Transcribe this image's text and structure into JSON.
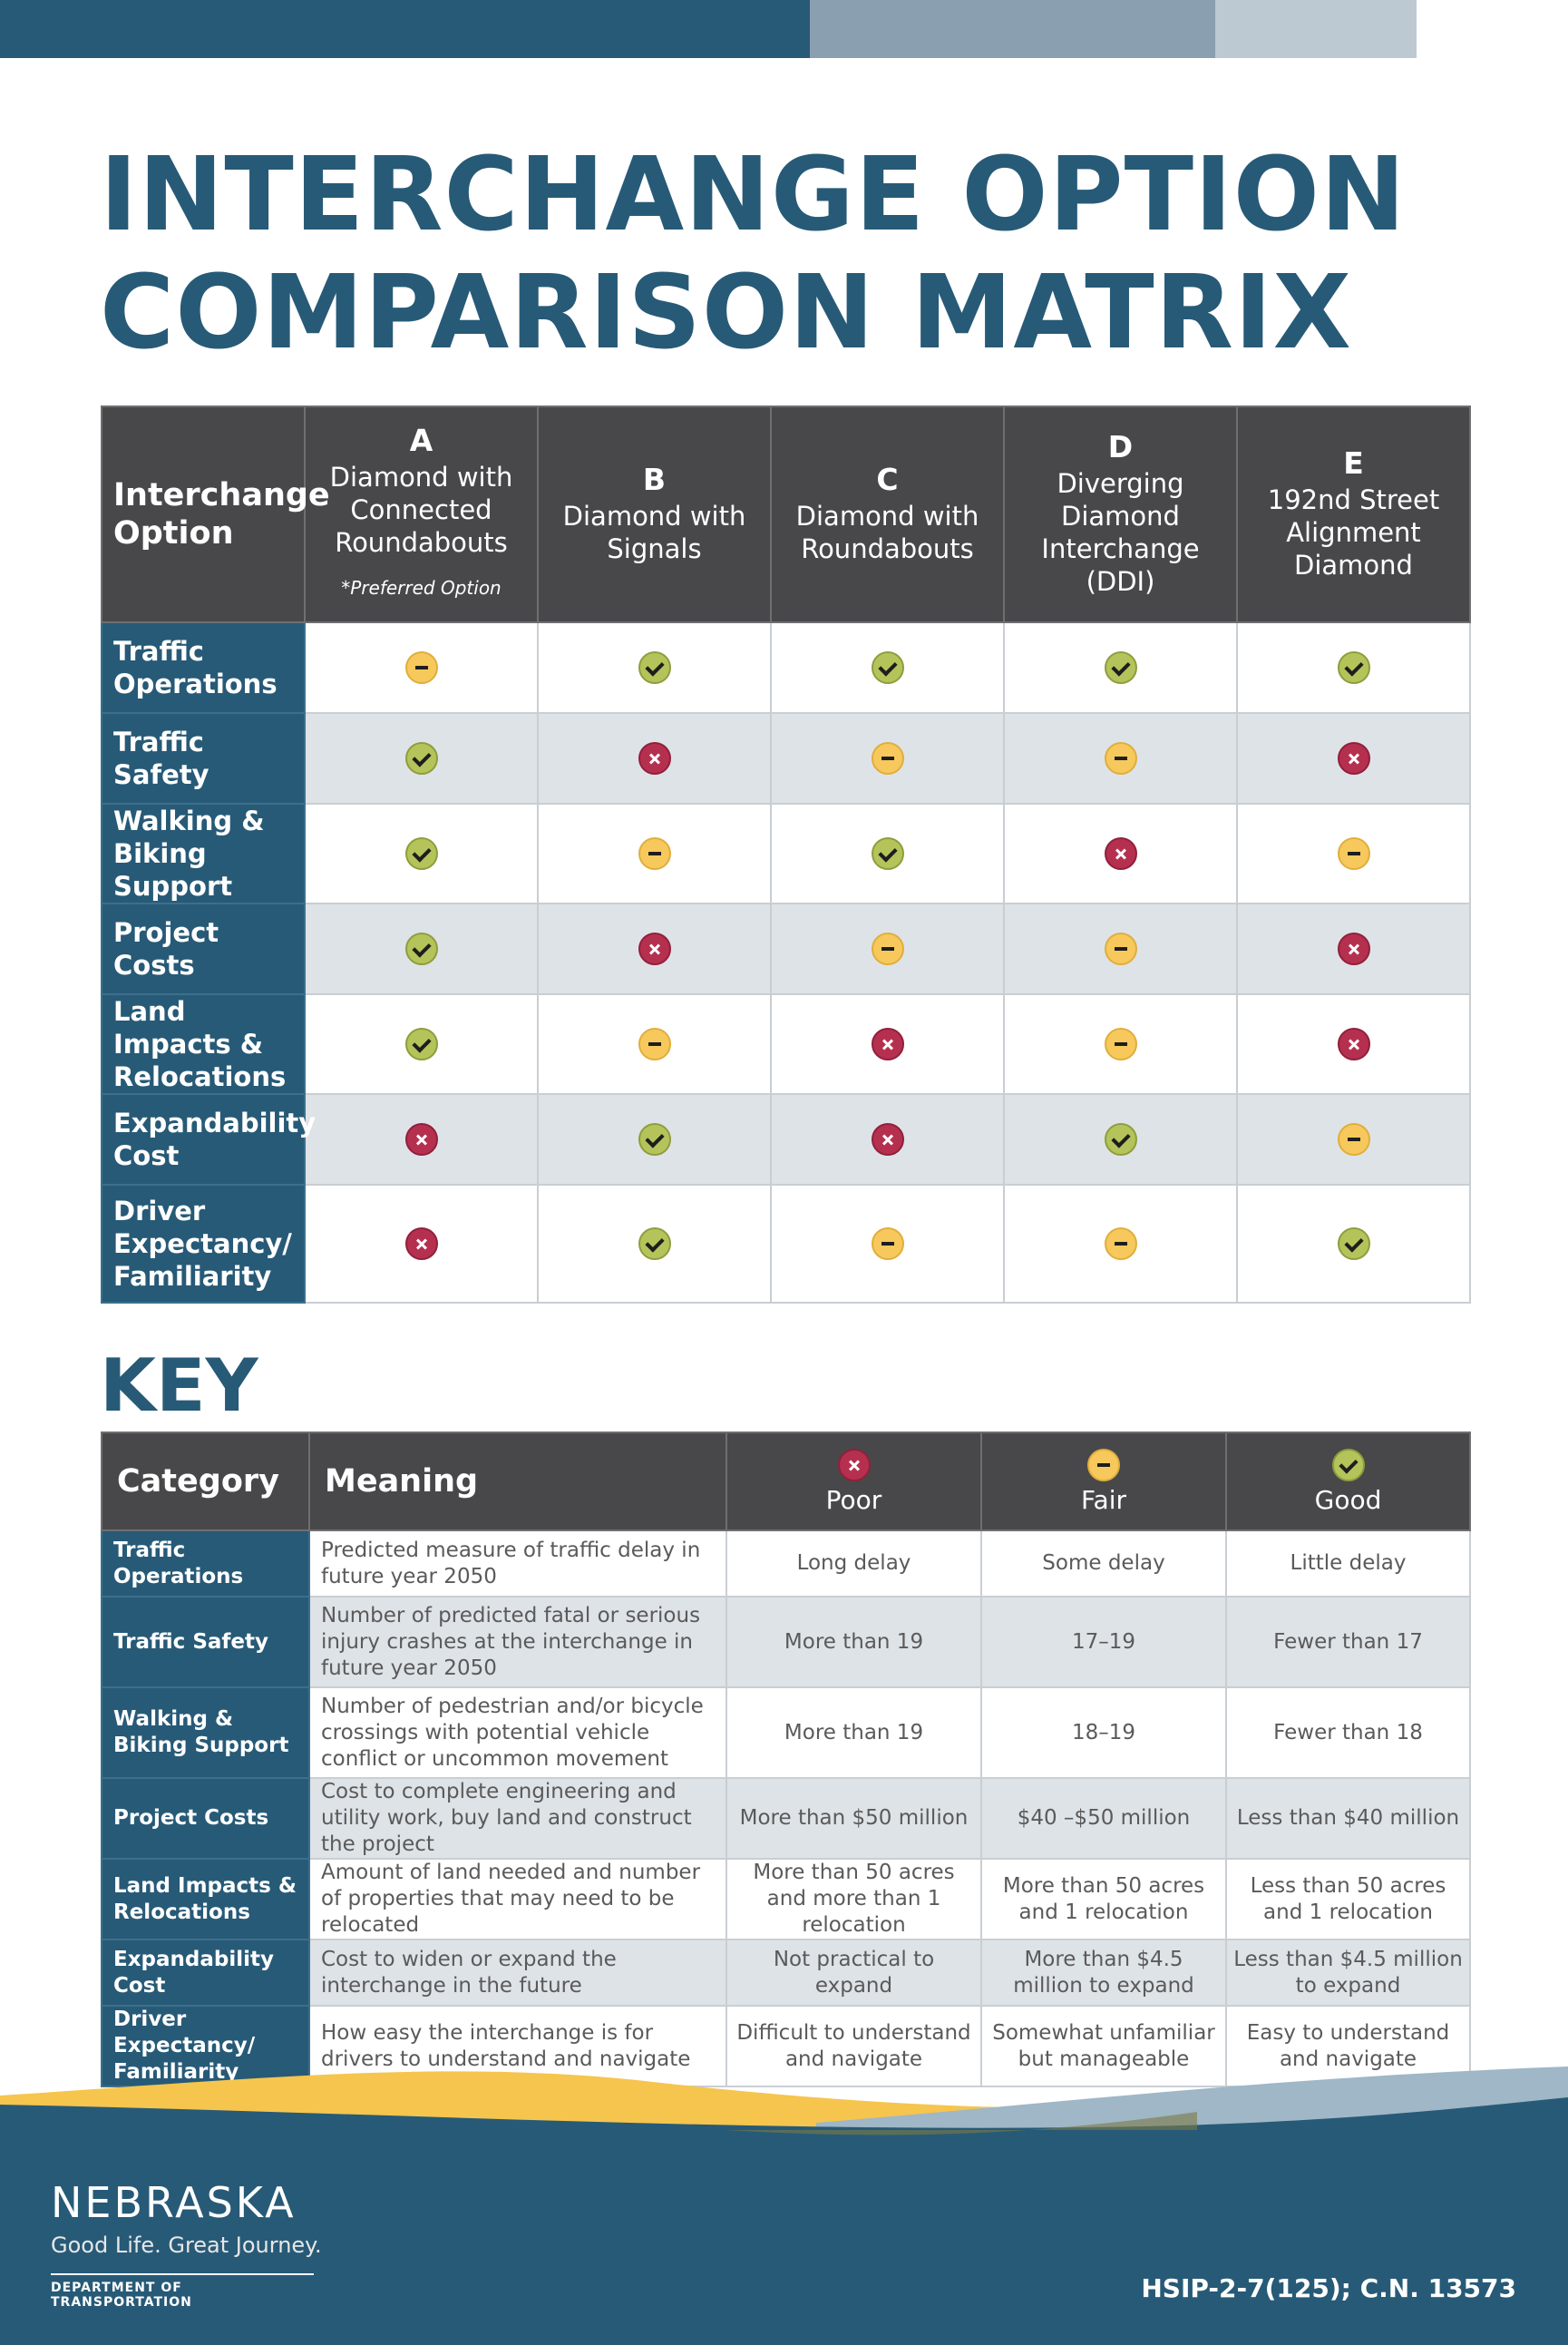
{
  "title": {
    "line1": "INTERCHANGE OPTION",
    "line2": "COMPARISON MATRIX"
  },
  "matrix": {
    "corner_label": "Interchange Option",
    "options": [
      {
        "letter": "A",
        "name": "Diamond with Connected Roundabouts",
        "note": "*Preferred Option"
      },
      {
        "letter": "B",
        "name": "Diamond with Signals",
        "note": ""
      },
      {
        "letter": "C",
        "name": "Diamond with Roundabouts",
        "note": ""
      },
      {
        "letter": "D",
        "name": "Diverging Diamond Interchange (DDI)",
        "note": ""
      },
      {
        "letter": "E",
        "name": "192nd Street Alignment Diamond",
        "note": ""
      }
    ],
    "rows": [
      {
        "label": "Traffic Operations",
        "ratings": [
          "fair",
          "good",
          "good",
          "good",
          "good"
        ]
      },
      {
        "label": "Traffic Safety",
        "ratings": [
          "good",
          "poor",
          "fair",
          "fair",
          "poor"
        ]
      },
      {
        "label": "Walking & Biking Support",
        "ratings": [
          "good",
          "fair",
          "good",
          "poor",
          "fair"
        ]
      },
      {
        "label": "Project Costs",
        "ratings": [
          "good",
          "poor",
          "fair",
          "fair",
          "poor"
        ]
      },
      {
        "label": "Land Impacts & Relocations",
        "ratings": [
          "good",
          "fair",
          "poor",
          "fair",
          "poor"
        ]
      },
      {
        "label": "Expandability Cost",
        "ratings": [
          "poor",
          "good",
          "poor",
          "good",
          "fair"
        ]
      },
      {
        "label": "Driver Expectancy/ Familiarity",
        "ratings": [
          "poor",
          "good",
          "fair",
          "fair",
          "good"
        ]
      }
    ]
  },
  "key": {
    "title": "KEY",
    "headers": {
      "category": "Category",
      "meaning": "Meaning",
      "poor": "Poor",
      "fair": "Fair",
      "good": "Good"
    },
    "rows": [
      {
        "category": "Traffic Operations",
        "meaning": "Predicted measure of traffic delay in future year 2050",
        "poor": "Long delay",
        "fair": "Some delay",
        "good": "Little delay"
      },
      {
        "category": "Traffic Safety",
        "meaning": "Number of predicted fatal or serious injury crashes at the interchange in future year 2050",
        "poor": "More than 19",
        "fair": "17–19",
        "good": "Fewer than 17"
      },
      {
        "category": "Walking & Biking Support",
        "meaning": "Number of pedestrian and/or bicycle crossings with potential vehicle conflict or uncommon movement",
        "poor": "More than 19",
        "fair": "18–19",
        "good": "Fewer than 18"
      },
      {
        "category": "Project Costs",
        "meaning": "Cost to complete engineering and utility work, buy land and construct the project",
        "poor": "More than $50 million",
        "fair": "$40 –$50 million",
        "good": "Less than $40 million"
      },
      {
        "category": "Land Impacts & Relocations",
        "meaning": "Amount of land needed and number of properties that may need to be relocated",
        "poor": "More than 50 acres and more than 1 relocation",
        "fair": "More than 50 acres and 1 relocation",
        "good": "Less than 50 acres and 1 relocation"
      },
      {
        "category": "Expandability Cost",
        "meaning": "Cost to widen or expand the interchange in the future",
        "poor": "Not practical to expand",
        "fair": "More than $4.5 million to expand",
        "good": "Less than $4.5 million to expand"
      },
      {
        "category": "Driver Expectancy/ Familiarity",
        "meaning": "How easy the interchange is for drivers to understand and navigate",
        "poor": "Difficult to understand and navigate",
        "fair": "Somewhat unfamiliar but manageable",
        "good": "Easy to understand and navigate"
      }
    ]
  },
  "footer": {
    "logo_word": "NEBRASKA",
    "tagline": "Good Life. Great Journey.",
    "department": "DEPARTMENT OF TRANSPORTATION",
    "project_code": "HSIP-2-7(125); C.N. 13573"
  },
  "colors": {
    "primary_blue": "#275a77",
    "header_gray": "#48484a",
    "good": "#b5c45a",
    "fair": "#f7c95c",
    "poor": "#b5304f",
    "accent_yellow": "#f5c54e"
  }
}
